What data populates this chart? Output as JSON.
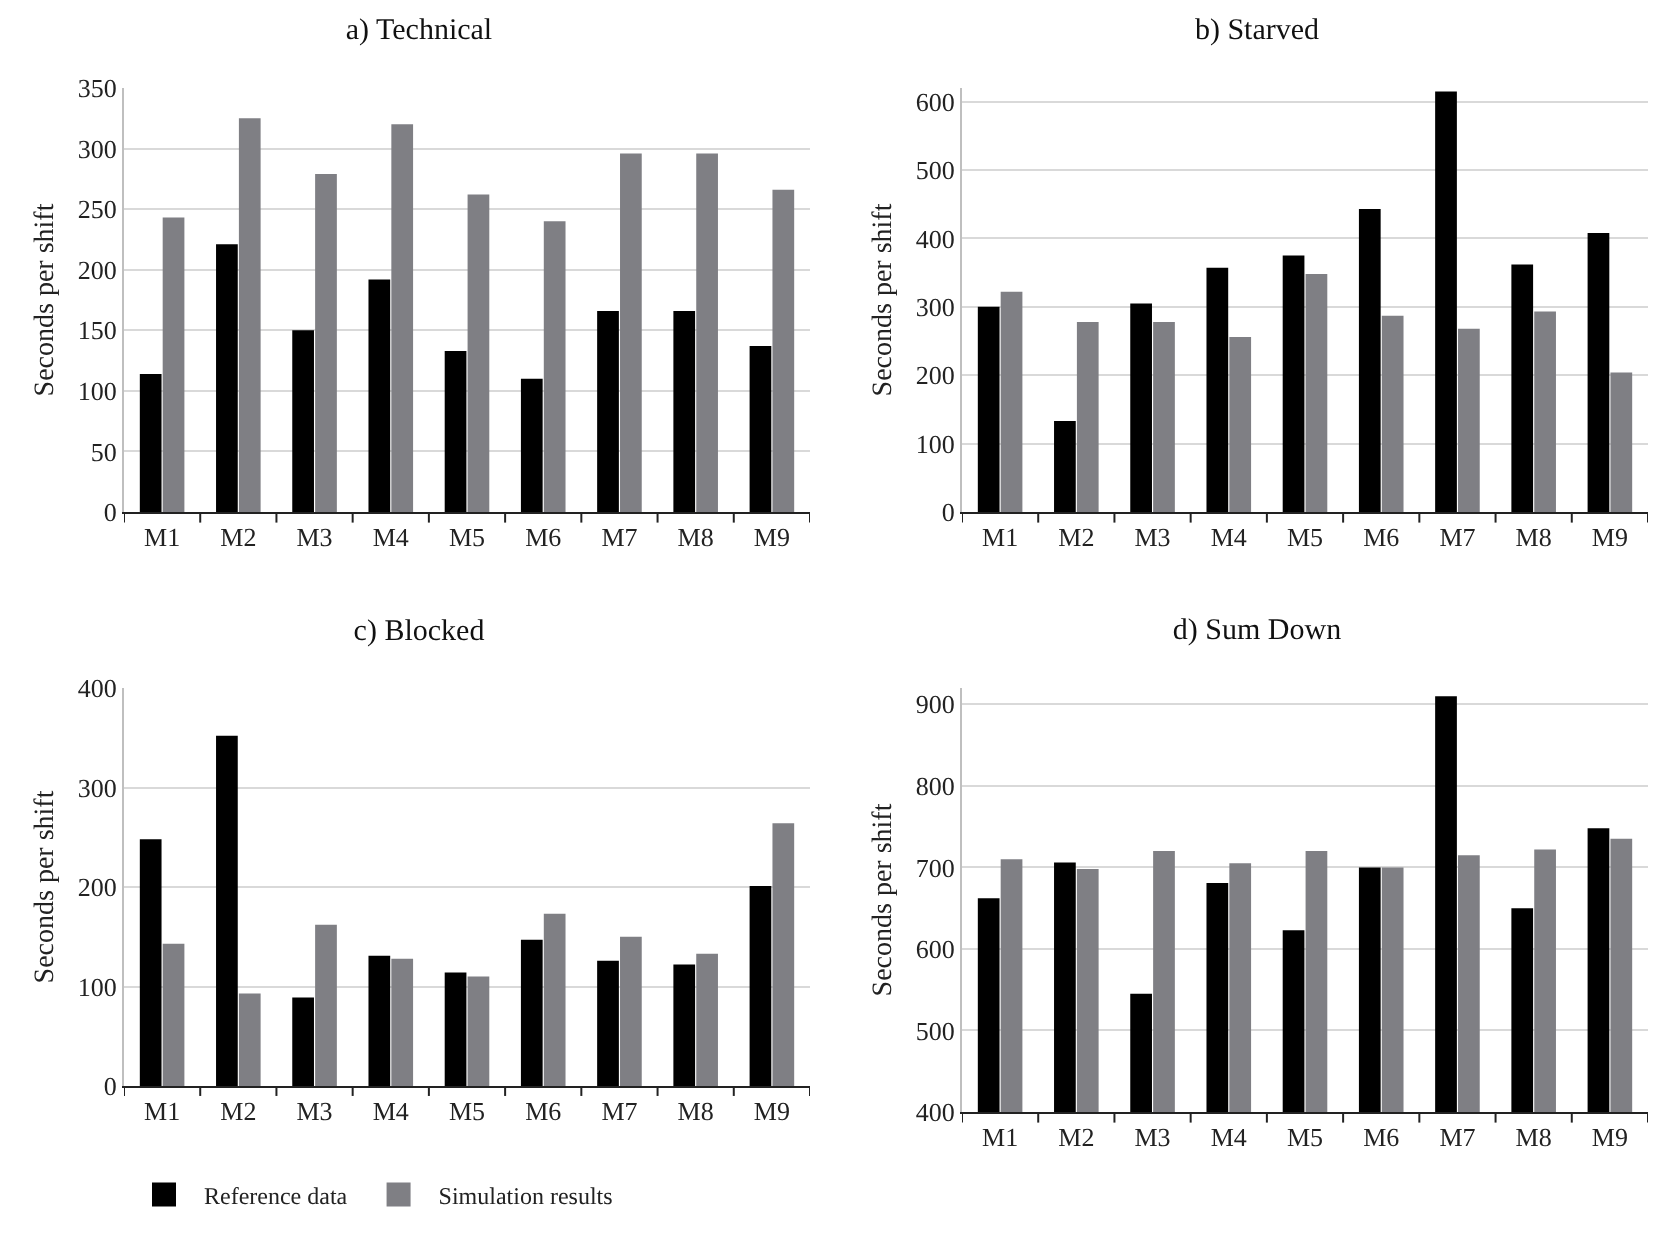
{
  "chart_data": [
    {
      "type": "bar",
      "title": "a) Technical",
      "ylabel": "Seconds per shift",
      "categories": [
        "M1",
        "M2",
        "M3",
        "M4",
        "M5",
        "M6",
        "M7",
        "M8",
        "M9"
      ],
      "ylim": [
        0,
        350
      ],
      "yticks": [
        0,
        50,
        100,
        150,
        200,
        250,
        300,
        350
      ],
      "grid": "y",
      "legend": false,
      "series": [
        {
          "color": "#000000",
          "values": [
            114,
            221,
            150,
            192,
            133,
            110,
            166,
            166,
            137
          ]
        },
        {
          "color": "#7f7f84",
          "values": [
            243,
            325,
            279,
            320,
            262,
            240,
            296,
            296,
            266
          ]
        }
      ]
    },
    {
      "type": "bar",
      "title": "b) Starved",
      "ylabel": "Seconds per shift",
      "categories": [
        "M1",
        "M2",
        "M3",
        "M4",
        "M5",
        "M6",
        "M7",
        "M8",
        "M9"
      ],
      "ylim": [
        0,
        620
      ],
      "yticks": [
        0,
        100,
        200,
        300,
        400,
        500,
        600
      ],
      "grid": "y",
      "legend": false,
      "series": [
        {
          "color": "#000000",
          "values": [
            300,
            133,
            305,
            357,
            375,
            443,
            615,
            362,
            408
          ]
        },
        {
          "color": "#7f7f84",
          "values": [
            322,
            278,
            278,
            256,
            348,
            287,
            268,
            293,
            204
          ]
        }
      ]
    },
    {
      "type": "bar",
      "title": "c) Blocked",
      "ylabel": "Seconds per shift",
      "categories": [
        "M1",
        "M2",
        "M3",
        "M4",
        "M5",
        "M6",
        "M7",
        "M8",
        "M9"
      ],
      "ylim": [
        0,
        400
      ],
      "yticks": [
        0,
        100,
        200,
        300,
        400
      ],
      "grid": "y",
      "legend": "bottom left",
      "series": [
        {
          "name": "Reference data",
          "color": "#000000",
          "values": [
            248,
            352,
            89,
            131,
            114,
            147,
            126,
            122,
            201
          ]
        },
        {
          "name": "Simulation results",
          "color": "#7f7f84",
          "values": [
            143,
            93,
            162,
            128,
            110,
            173,
            150,
            133,
            264
          ]
        }
      ]
    },
    {
      "type": "bar",
      "title": "d) Sum Down",
      "ylabel": "Seconds per shift",
      "categories": [
        "M1",
        "M2",
        "M3",
        "M4",
        "M5",
        "M6",
        "M7",
        "M8",
        "M9"
      ],
      "ylim": [
        400,
        920
      ],
      "yticks": [
        400,
        500,
        600,
        700,
        800,
        900
      ],
      "grid": "y",
      "legend": false,
      "series": [
        {
          "color": "#000000",
          "values": [
            662,
            706,
            545,
            681,
            623,
            700,
            910,
            650,
            748
          ]
        },
        {
          "color": "#7f7f84",
          "values": [
            710,
            698,
            720,
            705,
            720,
            700,
            715,
            722,
            735
          ]
        }
      ]
    }
  ]
}
